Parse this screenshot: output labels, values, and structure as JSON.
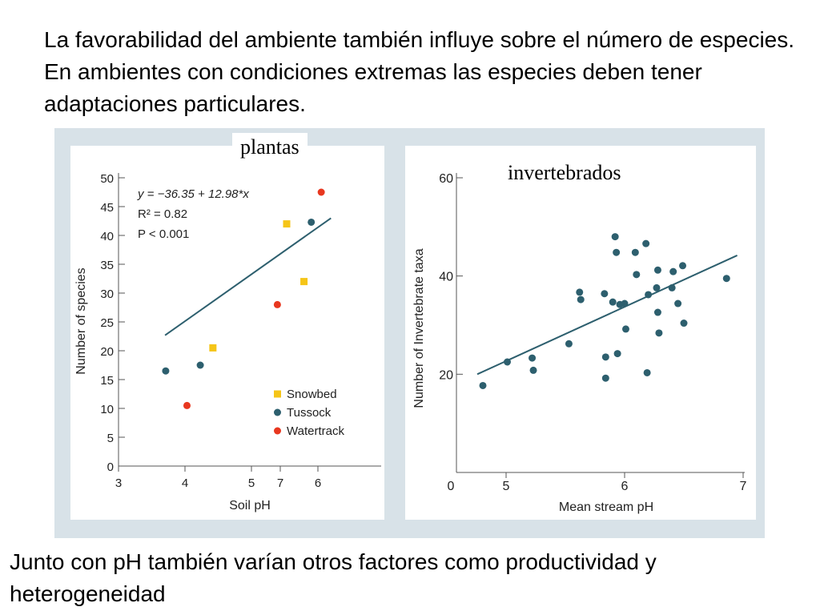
{
  "heading": "La favorabilidad del ambiente también influye sobre el número de especies. En ambientes con condiciones extremas las especies deben tener adaptaciones particulares.",
  "footer": "Junto con pH también varían otros factores como productividad y heterogeneidad",
  "labels": {
    "left": "plantas",
    "right": "invertebrados"
  },
  "colors": {
    "panel": "#d8e2e8",
    "snowbed": "#f5c518",
    "tussock": "#2d5f6e",
    "watertrack": "#e8371f",
    "fit": "#2d5f6e"
  },
  "chart_data": [
    {
      "type": "scatter",
      "xlabel": "Soil pH",
      "ylabel": "Number of species",
      "x_ticks": [
        "3",
        "4",
        "5",
        "7",
        "6"
      ],
      "y_ticks": [
        "0",
        "5",
        "10",
        "15",
        "20",
        "25",
        "30",
        "35",
        "40",
        "45",
        "50"
      ],
      "ylim": [
        0,
        50
      ],
      "annotation": [
        "y = −36.35 + 12.98*x",
        "R² = 0.82",
        "P < 0.001"
      ],
      "legend": {
        "position": "bottom-right",
        "entries": [
          "Snowbed",
          "Tussock",
          "Watertrack"
        ]
      },
      "series": [
        {
          "name": "Snowbed",
          "points": [
            [
              4.42,
              20.5
            ],
            [
              5.53,
              42
            ],
            [
              5.79,
              32
            ]
          ]
        },
        {
          "name": "Tussock",
          "points": [
            [
              3.71,
              16.5
            ],
            [
              4.23,
              17.5
            ],
            [
              5.9,
              42.3
            ]
          ]
        },
        {
          "name": "Watertrack",
          "points": [
            [
              4.03,
              10.5
            ],
            [
              5.39,
              28
            ],
            [
              6.05,
              47.5
            ]
          ]
        }
      ],
      "fit_line": {
        "intercept": -36.35,
        "slope": 12.98,
        "x_range": [
          3.7,
          6.1
        ]
      }
    },
    {
      "type": "scatter",
      "xlabel": "Mean stream pH",
      "ylabel": "Number of Invertebrate taxa",
      "x_ticks": [
        "0",
        "5",
        "6",
        "7"
      ],
      "y_ticks": [
        "20",
        "40",
        "60"
      ],
      "ylim": [
        0,
        60
      ],
      "series": [
        {
          "points": [
            [
              4.74,
              17.7
            ],
            [
              5.01,
              22.5
            ],
            [
              5.22,
              23.3
            ],
            [
              5.23,
              20.8
            ],
            [
              5.53,
              26.2
            ],
            [
              5.62,
              36.7
            ],
            [
              5.63,
              35.2
            ],
            [
              5.83,
              36.4
            ],
            [
              5.84,
              23.5
            ],
            [
              5.84,
              19.2
            ],
            [
              5.9,
              34.7
            ],
            [
              5.92,
              48
            ],
            [
              5.93,
              44.8
            ],
            [
              5.94,
              24.2
            ],
            [
              5.96,
              34.2
            ],
            [
              6.0,
              34.4
            ],
            [
              6.01,
              29.2
            ],
            [
              6.09,
              44.8
            ],
            [
              6.1,
              40.3
            ],
            [
              6.18,
              46.6
            ],
            [
              6.19,
              20.3
            ],
            [
              6.2,
              36.2
            ],
            [
              6.27,
              37.6
            ],
            [
              6.28,
              32.6
            ],
            [
              6.29,
              28.4
            ],
            [
              6.4,
              37.6
            ],
            [
              6.41,
              40.9
            ],
            [
              6.45,
              34.4
            ],
            [
              6.49,
              42.1
            ],
            [
              6.5,
              30.4
            ],
            [
              6.28,
              41.2
            ],
            [
              6.86,
              39.5
            ]
          ]
        }
      ],
      "fit_line": {
        "x_range": [
          4.74,
          6.95
        ],
        "y_range": [
          20,
          44.2
        ]
      }
    }
  ]
}
